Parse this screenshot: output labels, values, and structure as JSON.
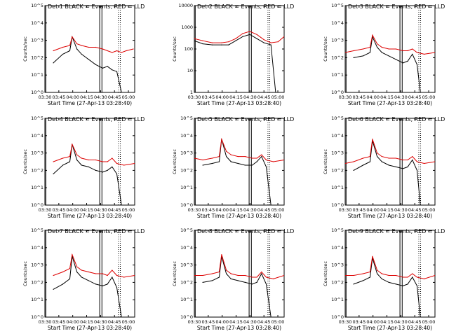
{
  "figure": {
    "background": "#ffffff"
  },
  "colors": {
    "events": "#000000",
    "lld": "#dd0000",
    "axes": "#000000"
  },
  "chart_data": [
    {
      "type": "line",
      "title": "Det  1 BLACK = Events, RED = LLD",
      "xlabel": "Start Time (27-Apr-13 03:28:40)",
      "ylabel": "Counts/sec",
      "xlim": [
        -0.18,
        1.73
      ],
      "ylim": [
        0,
        5
      ],
      "log_y": true,
      "x_ticks": [
        "03:30",
        "03:45",
        "04:00",
        "04:15",
        "04:30",
        "04:45",
        "05:00"
      ],
      "y_ticks": [
        "10^0",
        "10^1",
        "10^2",
        "10^3",
        "10^4",
        "10^5"
      ],
      "series": [
        {
          "name": "Events",
          "color": "#000000",
          "x": [
            0.0,
            0.2,
            0.35,
            0.4,
            0.5,
            0.6,
            0.75,
            0.9,
            1.05,
            1.15,
            1.25,
            1.35,
            1.45
          ],
          "y": [
            1.7,
            2.2,
            2.4,
            3.2,
            2.5,
            2.2,
            1.9,
            1.6,
            1.4,
            1.5,
            1.3,
            1.2,
            0.0
          ]
        },
        {
          "name": "LLD",
          "color": "#dd0000",
          "x": [
            0.0,
            0.2,
            0.35,
            0.4,
            0.5,
            0.6,
            0.75,
            0.9,
            1.05,
            1.15,
            1.25,
            1.35,
            1.45,
            1.55,
            1.7
          ],
          "y": [
            2.4,
            2.6,
            2.7,
            3.2,
            2.8,
            2.7,
            2.6,
            2.6,
            2.5,
            2.4,
            2.3,
            2.4,
            2.3,
            2.4,
            2.5
          ]
        }
      ]
    },
    {
      "type": "line",
      "title": "Det  2 BLACK = Events, RED = LLD",
      "xlabel": "Start Time (27-Apr-13 03:28:40)",
      "ylabel": "Counts/sec",
      "xlim": [
        -0.18,
        1.73
      ],
      "ylim": [
        0,
        4.2
      ],
      "log_y": true,
      "x_ticks": [
        "03:30",
        "03:45",
        "04:00",
        "04:15",
        "04:30",
        "04:45",
        "05:00"
      ],
      "y_ticks": [
        "1",
        "10",
        "100",
        "1000",
        "10000"
      ],
      "series": [
        {
          "name": "Events",
          "color": "#000000",
          "x": [
            -0.18,
            0.0,
            0.2,
            0.4,
            0.55,
            0.7,
            0.85,
            1.0,
            1.15,
            1.3,
            1.45,
            1.55
          ],
          "y": [
            2.5,
            2.35,
            2.3,
            2.3,
            2.3,
            2.5,
            2.7,
            2.8,
            2.6,
            2.4,
            2.3,
            0.0
          ]
        },
        {
          "name": "LLD",
          "color": "#dd0000",
          "x": [
            -0.18,
            0.0,
            0.2,
            0.4,
            0.55,
            0.7,
            0.85,
            1.0,
            1.15,
            1.3,
            1.45,
            1.6,
            1.73
          ],
          "y": [
            2.6,
            2.5,
            2.4,
            2.4,
            2.45,
            2.6,
            2.85,
            2.95,
            2.8,
            2.55,
            2.4,
            2.45,
            2.7
          ]
        }
      ]
    },
    {
      "type": "line",
      "title": "Det  3 BLACK = Events, RED = LLD",
      "xlabel": "Start Time (27-Apr-13 03:28:40)",
      "ylabel": "Counts/sec",
      "xlim": [
        -0.18,
        1.73
      ],
      "ylim": [
        0,
        5
      ],
      "log_y": true,
      "x_ticks": [
        "03:30",
        "03:45",
        "04:00",
        "04:15",
        "04:30",
        "04:45",
        "05:00"
      ],
      "y_ticks": [
        "10^0",
        "10^1",
        "10^2",
        "10^3",
        "10^4",
        "10^5"
      ],
      "series": [
        {
          "name": "Events",
          "color": "#000000",
          "x": [
            0.0,
            0.2,
            0.35,
            0.4,
            0.5,
            0.6,
            0.75,
            0.9,
            1.05,
            1.15,
            1.25,
            1.35,
            1.42
          ],
          "y": [
            2.0,
            2.1,
            2.3,
            3.2,
            2.6,
            2.3,
            2.1,
            1.9,
            1.7,
            1.8,
            2.2,
            1.6,
            0.0
          ]
        },
        {
          "name": "LLD",
          "color": "#dd0000",
          "x": [
            -0.18,
            0.0,
            0.2,
            0.35,
            0.4,
            0.5,
            0.6,
            0.75,
            0.9,
            1.05,
            1.15,
            1.25,
            1.35,
            1.5,
            1.73
          ],
          "y": [
            2.3,
            2.4,
            2.5,
            2.6,
            3.3,
            2.8,
            2.6,
            2.5,
            2.5,
            2.4,
            2.4,
            2.5,
            2.3,
            2.2,
            2.3
          ]
        }
      ]
    },
    {
      "type": "line",
      "title": "Det  4 BLACK = Events, RED = LLD",
      "xlabel": "Start Time (27-Apr-13 03:28:40)",
      "ylabel": "Counts/sec",
      "xlim": [
        -0.18,
        1.73
      ],
      "ylim": [
        0,
        5
      ],
      "log_y": true,
      "x_ticks": [
        "03:30",
        "03:45",
        "04:00",
        "04:15",
        "04:30",
        "04:45",
        "05:00"
      ],
      "y_ticks": [
        "10^0",
        "10^1",
        "10^2",
        "10^3",
        "10^4",
        "10^5"
      ],
      "series": [
        {
          "name": "Events",
          "color": "#000000",
          "x": [
            0.0,
            0.2,
            0.35,
            0.4,
            0.5,
            0.6,
            0.75,
            0.9,
            1.05,
            1.15,
            1.25,
            1.35,
            1.45
          ],
          "y": [
            1.8,
            2.3,
            2.5,
            3.5,
            2.6,
            2.3,
            2.2,
            2.0,
            1.9,
            2.0,
            2.2,
            1.8,
            0.0
          ]
        },
        {
          "name": "LLD",
          "color": "#dd0000",
          "x": [
            0.0,
            0.2,
            0.35,
            0.4,
            0.5,
            0.6,
            0.75,
            0.9,
            1.05,
            1.15,
            1.25,
            1.35,
            1.5,
            1.73
          ],
          "y": [
            2.5,
            2.7,
            2.8,
            3.5,
            2.9,
            2.7,
            2.6,
            2.6,
            2.5,
            2.5,
            2.7,
            2.4,
            2.3,
            2.4
          ]
        }
      ]
    },
    {
      "type": "line",
      "title": "Det  5 BLACK = Events, RED = LLD",
      "xlabel": "Start Time (27-Apr-13 03:28:40)",
      "ylabel": "Counts/sec",
      "xlim": [
        -0.18,
        1.73
      ],
      "ylim": [
        0,
        5
      ],
      "log_y": true,
      "x_ticks": [
        "03:30",
        "03:45",
        "04:00",
        "04:15",
        "04:30",
        "04:45",
        "05:00"
      ],
      "y_ticks": [
        "10^0",
        "10^1",
        "10^2",
        "10^3",
        "10^4",
        "10^5"
      ],
      "series": [
        {
          "name": "Events",
          "color": "#000000",
          "x": [
            0.0,
            0.2,
            0.35,
            0.4,
            0.5,
            0.6,
            0.75,
            0.9,
            1.05,
            1.15,
            1.25,
            1.35,
            1.45
          ],
          "y": [
            2.3,
            2.4,
            2.5,
            3.8,
            2.8,
            2.5,
            2.4,
            2.3,
            2.3,
            2.5,
            2.8,
            2.2,
            0.0
          ]
        },
        {
          "name": "LLD",
          "color": "#dd0000",
          "x": [
            -0.18,
            0.0,
            0.2,
            0.35,
            0.4,
            0.5,
            0.6,
            0.75,
            0.9,
            1.05,
            1.15,
            1.25,
            1.35,
            1.5,
            1.73
          ],
          "y": [
            2.7,
            2.6,
            2.7,
            2.8,
            3.8,
            3.1,
            2.9,
            2.8,
            2.8,
            2.7,
            2.7,
            2.9,
            2.6,
            2.5,
            2.6
          ]
        }
      ]
    },
    {
      "type": "line",
      "title": "Det  6 BLACK = Events, RED = LLD",
      "xlabel": "Start Time (27-Apr-13 03:28:40)",
      "ylabel": "Counts/sec",
      "xlim": [
        -0.18,
        1.73
      ],
      "ylim": [
        0,
        5
      ],
      "log_y": true,
      "x_ticks": [
        "03:30",
        "03:45",
        "04:00",
        "04:15",
        "04:30",
        "04:45",
        "05:00"
      ],
      "y_ticks": [
        "10^0",
        "10^1",
        "10^2",
        "10^3",
        "10^4",
        "10^5"
      ],
      "series": [
        {
          "name": "Events",
          "color": "#000000",
          "x": [
            0.0,
            0.2,
            0.35,
            0.4,
            0.5,
            0.6,
            0.75,
            0.9,
            1.05,
            1.15,
            1.25,
            1.35,
            1.42
          ],
          "y": [
            2.0,
            2.3,
            2.5,
            3.7,
            2.8,
            2.5,
            2.3,
            2.2,
            2.1,
            2.2,
            2.6,
            2.0,
            0.0
          ]
        },
        {
          "name": "LLD",
          "color": "#dd0000",
          "x": [
            -0.18,
            0.0,
            0.2,
            0.35,
            0.4,
            0.5,
            0.6,
            0.75,
            0.9,
            1.05,
            1.15,
            1.25,
            1.35,
            1.5,
            1.73
          ],
          "y": [
            2.4,
            2.5,
            2.7,
            2.8,
            3.8,
            3.0,
            2.8,
            2.7,
            2.7,
            2.6,
            2.6,
            2.8,
            2.5,
            2.4,
            2.5
          ]
        }
      ]
    },
    {
      "type": "line",
      "title": "Det  7 BLACK = Events, RED = LLD",
      "xlabel": "Start Time (27-Apr-13 03:28:40)",
      "ylabel": "Counts/sec",
      "xlim": [
        -0.18,
        1.73
      ],
      "ylim": [
        0,
        5
      ],
      "log_y": true,
      "x_ticks": [
        "03:30",
        "03:45",
        "04:00",
        "04:15",
        "04:30",
        "04:45",
        "05:00"
      ],
      "y_ticks": [
        "10^0",
        "10^1",
        "10^2",
        "10^3",
        "10^4",
        "10^5"
      ],
      "series": [
        {
          "name": "Events",
          "color": "#000000",
          "x": [
            0.0,
            0.2,
            0.35,
            0.4,
            0.5,
            0.6,
            0.75,
            0.9,
            1.05,
            1.15,
            1.25,
            1.35,
            1.45
          ],
          "y": [
            1.6,
            1.9,
            2.2,
            3.5,
            2.6,
            2.3,
            2.1,
            1.9,
            1.8,
            1.9,
            2.3,
            1.7,
            0.0
          ]
        },
        {
          "name": "LLD",
          "color": "#dd0000",
          "x": [
            0.0,
            0.2,
            0.35,
            0.4,
            0.5,
            0.6,
            0.75,
            0.9,
            1.05,
            1.15,
            1.25,
            1.35,
            1.5,
            1.73
          ],
          "y": [
            2.4,
            2.6,
            2.8,
            3.6,
            2.9,
            2.7,
            2.6,
            2.5,
            2.5,
            2.4,
            2.7,
            2.4,
            2.3,
            2.4
          ]
        }
      ]
    },
    {
      "type": "line",
      "title": "Det  8 BLACK = Events, RED = LLD",
      "xlabel": "Start Time (27-Apr-13 03:28:40)",
      "ylabel": "Counts/sec",
      "xlim": [
        -0.18,
        1.73
      ],
      "ylim": [
        0,
        5
      ],
      "log_y": true,
      "x_ticks": [
        "03:30",
        "03:45",
        "04:00",
        "04:15",
        "04:30",
        "04:45",
        "05:00"
      ],
      "y_ticks": [
        "10^0",
        "10^1",
        "10^2",
        "10^3",
        "10^4",
        "10^5"
      ],
      "series": [
        {
          "name": "Events",
          "color": "#000000",
          "x": [
            0.0,
            0.2,
            0.35,
            0.4,
            0.5,
            0.6,
            0.75,
            0.9,
            1.05,
            1.15,
            1.25,
            1.35,
            1.45
          ],
          "y": [
            2.0,
            2.1,
            2.3,
            3.5,
            2.5,
            2.2,
            2.1,
            2.0,
            1.9,
            2.0,
            2.5,
            1.9,
            0.0
          ]
        },
        {
          "name": "LLD",
          "color": "#dd0000",
          "x": [
            -0.18,
            0.0,
            0.2,
            0.35,
            0.4,
            0.5,
            0.6,
            0.75,
            0.9,
            1.05,
            1.15,
            1.25,
            1.35,
            1.5,
            1.73
          ],
          "y": [
            2.4,
            2.4,
            2.5,
            2.6,
            3.6,
            2.7,
            2.5,
            2.4,
            2.4,
            2.3,
            2.3,
            2.6,
            2.3,
            2.2,
            2.4
          ]
        }
      ]
    },
    {
      "type": "line",
      "title": "Det  9 BLACK = Events, RED = LLD",
      "xlabel": "Start Time (27-Apr-13 03:28:40)",
      "ylabel": "Counts/sec",
      "xlim": [
        -0.18,
        1.73
      ],
      "ylim": [
        0,
        5
      ],
      "log_y": true,
      "x_ticks": [
        "03:30",
        "03:45",
        "04:00",
        "04:15",
        "04:30",
        "04:45",
        "05:00"
      ],
      "y_ticks": [
        "10^0",
        "10^1",
        "10^2",
        "10^3",
        "10^4",
        "10^5"
      ],
      "series": [
        {
          "name": "Events",
          "color": "#000000",
          "x": [
            0.0,
            0.2,
            0.35,
            0.4,
            0.5,
            0.6,
            0.75,
            0.9,
            1.05,
            1.15,
            1.25,
            1.35,
            1.42
          ],
          "y": [
            1.9,
            2.1,
            2.3,
            3.4,
            2.5,
            2.2,
            2.0,
            1.9,
            1.8,
            1.9,
            2.3,
            1.8,
            0.0
          ]
        },
        {
          "name": "LLD",
          "color": "#dd0000",
          "x": [
            -0.18,
            0.0,
            0.2,
            0.35,
            0.4,
            0.5,
            0.6,
            0.75,
            0.9,
            1.05,
            1.15,
            1.25,
            1.35,
            1.5,
            1.73
          ],
          "y": [
            2.4,
            2.4,
            2.5,
            2.6,
            3.5,
            2.7,
            2.5,
            2.4,
            2.4,
            2.3,
            2.3,
            2.5,
            2.3,
            2.2,
            2.4
          ]
        }
      ]
    }
  ]
}
